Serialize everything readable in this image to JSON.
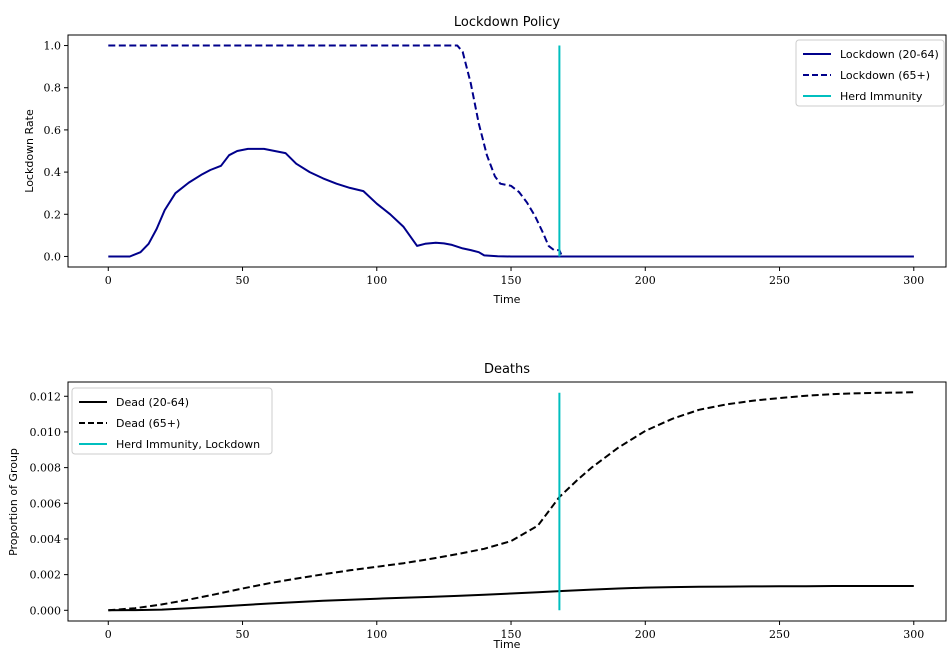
{
  "chart_data": [
    {
      "type": "line",
      "title": "Lockdown Policy",
      "xlabel": "Time",
      "ylabel": "Lockdown Rate",
      "xlim": [
        -15,
        312
      ],
      "ylim": [
        -0.05,
        1.05
      ],
      "xticks": [
        0,
        50,
        100,
        150,
        200,
        250,
        300
      ],
      "yticks": [
        0.0,
        0.2,
        0.4,
        0.6,
        0.8,
        1.0
      ],
      "ytick_labels": [
        "0.0",
        "0.2",
        "0.4",
        "0.6",
        "0.8",
        "1.0"
      ],
      "grid": false,
      "legend_position": "top-right",
      "series": [
        {
          "name": "Lockdown (20-64)",
          "color": "#00008b",
          "style": "solid",
          "x": [
            0,
            5,
            8,
            12,
            15,
            18,
            21,
            25,
            30,
            35,
            38,
            42,
            45,
            48,
            52,
            55,
            58,
            62,
            66,
            70,
            75,
            80,
            85,
            90,
            95,
            100,
            105,
            110,
            115,
            118,
            122,
            125,
            128,
            132,
            135,
            138,
            140,
            145,
            150,
            160,
            168,
            200,
            250,
            300
          ],
          "y": [
            0.0,
            0.0,
            0.0,
            0.02,
            0.06,
            0.13,
            0.22,
            0.3,
            0.35,
            0.39,
            0.41,
            0.43,
            0.48,
            0.5,
            0.51,
            0.51,
            0.51,
            0.5,
            0.49,
            0.44,
            0.4,
            0.37,
            0.345,
            0.325,
            0.31,
            0.25,
            0.2,
            0.14,
            0.05,
            0.06,
            0.065,
            0.062,
            0.055,
            0.038,
            0.03,
            0.02,
            0.005,
            0.001,
            0.0,
            0.0,
            0.0,
            0.0,
            0.0,
            0.0
          ]
        },
        {
          "name": "Lockdown (65+)",
          "color": "#00008b",
          "style": "dashed",
          "x": [
            0,
            50,
            100,
            130,
            132,
            135,
            138,
            141,
            144,
            146,
            150,
            153,
            156,
            159,
            162,
            164,
            166,
            168,
            169,
            170,
            200,
            250,
            300
          ],
          "y": [
            1.0,
            1.0,
            1.0,
            1.0,
            0.97,
            0.82,
            0.63,
            0.48,
            0.38,
            0.345,
            0.335,
            0.305,
            0.255,
            0.19,
            0.11,
            0.05,
            0.03,
            0.03,
            0.0,
            0.0,
            0.0,
            0.0,
            0.0
          ]
        },
        {
          "name": "Herd Immunity",
          "color": "#00bfbf",
          "style": "solid",
          "x": [
            168,
            168
          ],
          "y": [
            0.0,
            1.0
          ]
        }
      ]
    },
    {
      "type": "line",
      "title": "Deaths",
      "xlabel": "Time",
      "ylabel": "Proportion of Group",
      "xlim": [
        -15,
        312
      ],
      "ylim": [
        -0.0006,
        0.0128
      ],
      "xticks": [
        0,
        50,
        100,
        150,
        200,
        250,
        300
      ],
      "yticks": [
        0.0,
        0.002,
        0.004,
        0.006,
        0.008,
        0.01,
        0.012
      ],
      "ytick_labels": [
        "0.000",
        "0.002",
        "0.004",
        "0.006",
        "0.008",
        "0.010",
        "0.012"
      ],
      "grid": false,
      "legend_position": "top-left",
      "series": [
        {
          "name": "Dead (20-64)",
          "color": "#000000",
          "style": "solid",
          "x": [
            0,
            10,
            20,
            30,
            40,
            50,
            60,
            70,
            80,
            90,
            100,
            110,
            120,
            130,
            140,
            150,
            160,
            170,
            180,
            190,
            200,
            210,
            220,
            230,
            240,
            250,
            260,
            270,
            280,
            290,
            300
          ],
          "y": [
            0.0,
            1e-05,
            4e-05,
            0.00011,
            0.0002,
            0.00029,
            0.00038,
            0.00046,
            0.00053,
            0.00059,
            0.00065,
            0.0007,
            0.00075,
            0.00081,
            0.00087,
            0.00094,
            0.00101,
            0.00109,
            0.00116,
            0.00122,
            0.00127,
            0.0013,
            0.00132,
            0.00133,
            0.00134,
            0.00135,
            0.00135,
            0.00136,
            0.00136,
            0.00136,
            0.00136
          ]
        },
        {
          "name": "Dead (65+)",
          "color": "#000000",
          "style": "dashed",
          "x": [
            0,
            10,
            20,
            30,
            40,
            50,
            60,
            70,
            80,
            90,
            100,
            110,
            120,
            130,
            140,
            150,
            160,
            168,
            175,
            180,
            190,
            200,
            210,
            220,
            230,
            240,
            250,
            260,
            270,
            280,
            290,
            300
          ],
          "y": [
            0.0,
            0.00012,
            0.00033,
            0.0006,
            0.0009,
            0.00122,
            0.00152,
            0.00178,
            0.00202,
            0.00224,
            0.00244,
            0.00264,
            0.00288,
            0.00315,
            0.00345,
            0.00388,
            0.00475,
            0.00635,
            0.00735,
            0.008,
            0.00912,
            0.01006,
            0.01073,
            0.01124,
            0.01154,
            0.01175,
            0.0119,
            0.01203,
            0.01212,
            0.01217,
            0.0122,
            0.01222
          ]
        },
        {
          "name": "Herd Immunity, Lockdown",
          "color": "#00bfbf",
          "style": "solid",
          "x": [
            168,
            168
          ],
          "y": [
            0.0,
            0.0122
          ]
        }
      ]
    }
  ]
}
